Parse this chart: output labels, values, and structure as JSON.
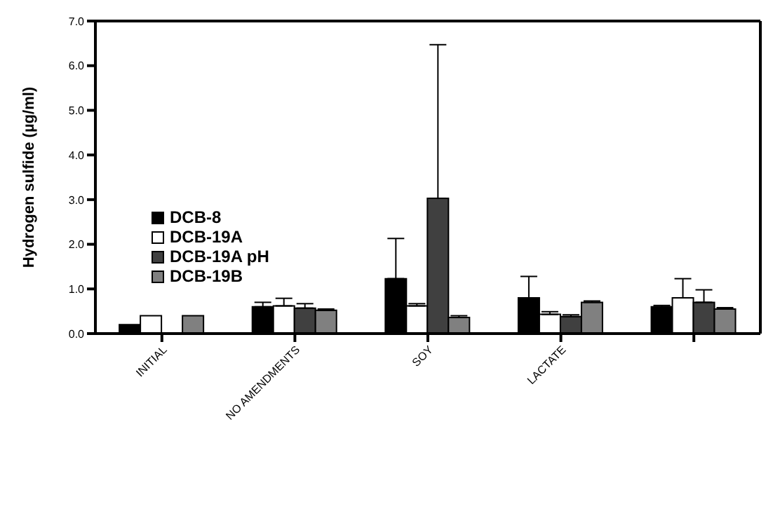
{
  "chart_data": {
    "type": "bar",
    "ylabel": "Hydrogen sulfide (µg/ml)",
    "categories": [
      "INITIAL",
      "NO AMENDMENTS",
      "SOY",
      "LACTATE",
      null
    ],
    "series": [
      {
        "name": "DCB-8",
        "color": "#000000",
        "values": [
          0.2,
          0.6,
          1.23,
          0.8,
          0.6
        ],
        "errors": [
          null,
          0.1,
          0.9,
          0.48,
          0.03
        ]
      },
      {
        "name": "DCB-19A",
        "color": "#ffffff",
        "values": [
          0.4,
          0.62,
          0.62,
          0.43,
          0.8
        ],
        "errors": [
          null,
          0.17,
          0.05,
          0.06,
          0.43
        ]
      },
      {
        "name": "DCB-19A pH",
        "color": "#404040",
        "values": [
          null,
          0.57,
          3.03,
          0.38,
          0.7
        ],
        "errors": [
          null,
          0.1,
          3.44,
          0.04,
          0.28
        ]
      },
      {
        "name": "DCB-19B",
        "color": "#808080",
        "values": [
          0.4,
          0.52,
          0.36,
          0.7,
          0.55
        ],
        "errors": [
          null,
          0.03,
          0.04,
          0.03,
          0.03
        ]
      }
    ],
    "ylim": [
      0,
      7
    ],
    "yticks": [
      {
        "value": 0,
        "label": "0.0"
      },
      {
        "value": 1,
        "label": "1.0"
      },
      {
        "value": 2,
        "label": "2.0"
      },
      {
        "value": 3,
        "label": "3.0"
      },
      {
        "value": 4,
        "label": "4.0"
      },
      {
        "value": 5,
        "label": "5.0"
      },
      {
        "value": 6,
        "label": "6.0"
      },
      {
        "value": 7,
        "label": "7.0"
      }
    ],
    "grid": false,
    "legend": "left"
  }
}
